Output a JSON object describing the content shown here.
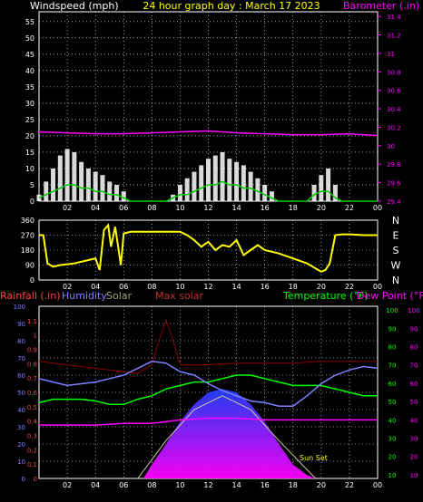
{
  "header": {
    "left": "Windspeed (mph)",
    "center": "24 hour graph day : March 17 2023",
    "right": "Barometer (.in)"
  },
  "panel3_labels": {
    "rainfall": "Rainfall (.in)",
    "humidity": "Humidity",
    "solar": "Solar",
    "max_solar": "Max solar",
    "temperature": "Temperature (°F)",
    "dew_point": "Dew Point (°F)",
    "sun_set": "Sun Set"
  },
  "colors": {
    "wind_speed": "#ffffff",
    "wind_avg": "#00cc00",
    "barometer": "#ff00ff",
    "direction": "#ffff00",
    "humidity": "#8080ff",
    "temperature": "#00ff00",
    "dew_point": "#ff00ff",
    "max_solar": "#8b0000",
    "solar": "#c8c8a0",
    "rain": "#ff4040",
    "grid": "#ffffff"
  },
  "x_ticks": [
    "02",
    "04",
    "06",
    "08",
    "10",
    "12",
    "14",
    "16",
    "18",
    "20",
    "22",
    "00"
  ],
  "chart_data": [
    {
      "type": "line",
      "x_range": [
        0,
        24
      ],
      "series": [
        {
          "x": [
            0,
            0.5,
            1,
            1.5,
            2,
            2.5,
            3,
            3.5,
            4,
            4.5,
            5,
            5.5,
            6,
            6.5,
            7,
            7.5,
            8,
            8.5,
            9,
            9.5,
            10,
            10.5,
            11,
            11.5,
            12,
            12.5,
            13,
            13.5,
            14,
            14.5,
            15,
            15.5,
            16,
            16.5,
            17,
            17.5,
            18,
            18.5,
            19,
            19.5,
            20,
            20.5,
            21,
            21.5,
            22,
            22.5,
            23,
            23.5,
            24
          ],
          "values": [
            2,
            6,
            10,
            14,
            16,
            15,
            12,
            10,
            9,
            8,
            6,
            5,
            3,
            0,
            0,
            0,
            0,
            0,
            0,
            2,
            5,
            7,
            9,
            11,
            13,
            14,
            15,
            13,
            12,
            11,
            9,
            7,
            5,
            3,
            0,
            0,
            0,
            0,
            0,
            5,
            8,
            10,
            5,
            0,
            0,
            0,
            0,
            0,
            0
          ]
        },
        {
          "x": [
            0,
            0.5,
            1,
            1.5,
            2,
            2.5,
            3,
            3.5,
            4,
            4.5,
            5,
            5.5,
            6,
            6.5,
            7,
            7.5,
            8,
            8.5,
            9,
            9.5,
            10,
            10.5,
            11,
            11.5,
            12,
            12.5,
            13,
            13.5,
            14,
            14.5,
            15,
            15.5,
            16,
            16.5,
            17,
            17.5,
            18,
            18.5,
            19,
            19.5,
            20,
            20.5,
            21,
            21.5,
            22,
            22.5,
            23,
            23.5,
            24
          ],
          "values": [
            1,
            2,
            3,
            4,
            5,
            5,
            4,
            4,
            3,
            3,
            2,
            2,
            1,
            0,
            0,
            0,
            0,
            0,
            0,
            1,
            2,
            2,
            3,
            4,
            5,
            5,
            6,
            5,
            5,
            4,
            4,
            3,
            2,
            1,
            0,
            0,
            0,
            0,
            0,
            2,
            3,
            3,
            1,
            0,
            0,
            0,
            0,
            0,
            0
          ]
        },
        {
          "x": [
            0,
            2,
            4,
            6,
            8,
            10,
            12,
            14,
            16,
            18,
            20,
            22,
            24
          ],
          "values": [
            30.15,
            30.14,
            30.13,
            30.13,
            30.14,
            30.15,
            30.16,
            30.14,
            30.13,
            30.12,
            30.12,
            30.13,
            30.11
          ]
        }
      ],
      "y_left": {
        "range": [
          0,
          58
        ],
        "ticks": [
          0,
          5,
          10,
          15,
          20,
          25,
          30,
          35,
          40,
          45,
          50,
          55
        ]
      },
      "y_right": {
        "range": [
          29.4,
          31.45
        ],
        "ticks": [
          "29.4",
          "29.6",
          "29.8",
          "30",
          "30.2",
          "30.4",
          "30.6",
          "30.8",
          "31",
          "31.2",
          "31.4"
        ]
      },
      "grid": true
    },
    {
      "type": "line",
      "x_range": [
        0,
        24
      ],
      "series": [
        {
          "x": [
            0,
            0.3,
            0.6,
            1,
            1.5,
            2,
            2.5,
            3,
            3.5,
            4,
            4.3,
            4.6,
            4.9,
            5.1,
            5.4,
            5.8,
            6,
            6.5,
            7,
            8,
            9,
            10,
            10.5,
            11,
            11.5,
            12,
            12.5,
            13,
            13.5,
            14,
            14.5,
            15,
            15.5,
            16,
            17,
            18,
            19,
            20,
            20.3,
            20.6,
            21,
            21.5,
            22,
            23,
            24
          ],
          "values": [
            270,
            270,
            100,
            80,
            90,
            95,
            100,
            110,
            120,
            130,
            60,
            300,
            330,
            200,
            320,
            90,
            280,
            290,
            290,
            290,
            290,
            290,
            270,
            240,
            200,
            230,
            180,
            210,
            200,
            240,
            150,
            180,
            210,
            180,
            160,
            130,
            100,
            50,
            60,
            100,
            270,
            275,
            275,
            270,
            270
          ]
        }
      ],
      "y_left": {
        "range": [
          0,
          360
        ],
        "ticks": [
          0,
          90,
          180,
          270,
          360
        ]
      },
      "y_right_labels": [
        "N",
        "W",
        "S",
        "E",
        "N"
      ],
      "grid": true
    },
    {
      "type": "line",
      "x_range": [
        0,
        24
      ],
      "series": [
        {
          "x": [
            0,
            1,
            2,
            3,
            4,
            5,
            6,
            7,
            8,
            9,
            10,
            11,
            12,
            13,
            14,
            15,
            16,
            17,
            18,
            19,
            20,
            21,
            22,
            23,
            24
          ],
          "values": [
            58,
            56,
            54,
            55,
            56,
            58,
            60,
            64,
            68,
            67,
            62,
            60,
            55,
            51,
            48,
            45,
            44,
            42,
            42,
            48,
            55,
            60,
            63,
            65,
            64
          ]
        },
        {
          "x": [
            0,
            1,
            2,
            3,
            4,
            5,
            6,
            7,
            8,
            9,
            10,
            11,
            12,
            13,
            14,
            15,
            16,
            17,
            18,
            19,
            20,
            21,
            22,
            23,
            24
          ],
          "values": [
            44,
            46,
            46,
            46,
            45,
            43,
            43,
            46,
            48,
            52,
            54,
            56,
            56,
            58,
            60,
            60,
            58,
            56,
            54,
            54,
            54,
            52,
            50,
            48,
            48
          ]
        },
        {
          "x": [
            0,
            2,
            4,
            6,
            8,
            10,
            12,
            14,
            16,
            18,
            20,
            22,
            24
          ],
          "values": [
            31,
            31,
            31,
            32,
            32,
            34,
            35,
            35,
            34,
            34,
            34,
            34,
            34
          ]
        },
        {
          "x": [
            0,
            1,
            2,
            3,
            4,
            5,
            6,
            7,
            8,
            8.5,
            9,
            9.5,
            10,
            12,
            14,
            16,
            18,
            20,
            22,
            24
          ],
          "values": [
            68,
            67,
            66,
            65,
            64,
            63,
            62,
            61,
            66,
            80,
            92,
            80,
            66,
            66,
            67,
            67,
            67,
            68,
            68,
            68
          ]
        },
        {
          "x": [
            7.4,
            8,
            9,
            10,
            11,
            12,
            13,
            14,
            15,
            16,
            17,
            18,
            19,
            19.6
          ],
          "values": [
            0,
            8,
            20,
            33,
            43,
            50,
            52,
            50,
            43,
            33,
            20,
            8,
            2,
            0
          ]
        }
      ],
      "y_left": {
        "range": [
          0,
          100
        ],
        "ticks": [
          0,
          10,
          20,
          30,
          40,
          50,
          60,
          70,
          80,
          90,
          100
        ]
      },
      "y_rain": {
        "range": [
          0,
          1.2
        ],
        "ticks": [
          "0",
          "0.1",
          "0.2",
          "0.3",
          "0.4",
          "0.5",
          "0.6",
          "0.7",
          "0.8",
          "0.9",
          "1",
          "1.1"
        ]
      },
      "y_right": {
        "range": [
          8,
          102
        ],
        "ticks": [
          10,
          20,
          30,
          40,
          50,
          60,
          70,
          80,
          90,
          100
        ]
      },
      "grid": true
    }
  ]
}
